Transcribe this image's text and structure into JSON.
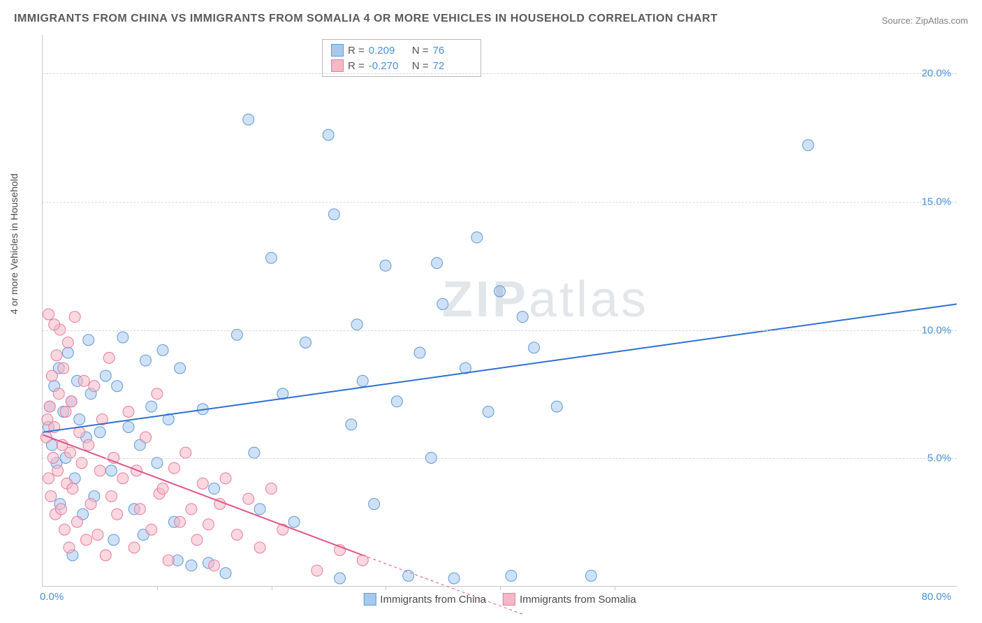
{
  "title": "IMMIGRANTS FROM CHINA VS IMMIGRANTS FROM SOMALIA 4 OR MORE VEHICLES IN HOUSEHOLD CORRELATION CHART",
  "source": "Source: ZipAtlas.com",
  "ylabel": "4 or more Vehicles in Household",
  "watermark": "ZIPatlas",
  "chart": {
    "type": "scatter",
    "xlim": [
      0,
      80
    ],
    "ylim": [
      0,
      21.5
    ],
    "xunit": "%",
    "yunit": "%",
    "ytick_values": [
      5,
      10,
      15,
      20
    ],
    "ytick_labels": [
      "5.0%",
      "10.0%",
      "15.0%",
      "20.0%"
    ],
    "xtick_values": [
      10,
      20,
      30,
      40,
      50
    ],
    "xmin_label": "0.0%",
    "xmax_label": "80.0%",
    "grid_color": "#d8d8d8",
    "axis_color": "#c8c8c8",
    "label_color": "#4a8fd8",
    "background": "#ffffff",
    "point_radius": 8,
    "point_opacity": 0.55,
    "series": [
      {
        "name": "Immigrants from China",
        "color_fill": "#a7c9ee",
        "color_stroke": "#5d9ad6",
        "r": 0.209,
        "n": 76,
        "trend": {
          "x1": 0,
          "y1": 6.0,
          "x2": 80,
          "y2": 11.0,
          "color": "#2e6fd1",
          "width": 2
        },
        "points": [
          [
            0.5,
            6.2
          ],
          [
            0.6,
            7.0
          ],
          [
            0.8,
            5.5
          ],
          [
            1.0,
            7.8
          ],
          [
            1.2,
            4.8
          ],
          [
            1.4,
            8.5
          ],
          [
            1.5,
            3.2
          ],
          [
            1.8,
            6.8
          ],
          [
            2.0,
            5.0
          ],
          [
            2.2,
            9.1
          ],
          [
            2.5,
            7.2
          ],
          [
            2.8,
            4.2
          ],
          [
            3.0,
            8.0
          ],
          [
            3.2,
            6.5
          ],
          [
            3.5,
            2.8
          ],
          [
            3.8,
            5.8
          ],
          [
            4.0,
            9.6
          ],
          [
            4.2,
            7.5
          ],
          [
            4.5,
            3.5
          ],
          [
            5.0,
            6.0
          ],
          [
            5.5,
            8.2
          ],
          [
            6.0,
            4.5
          ],
          [
            6.5,
            7.8
          ],
          [
            7.0,
            9.7
          ],
          [
            7.5,
            6.2
          ],
          [
            8.0,
            3.0
          ],
          [
            8.5,
            5.5
          ],
          [
            9.0,
            8.8
          ],
          [
            9.5,
            7.0
          ],
          [
            10.0,
            4.8
          ],
          [
            10.5,
            9.2
          ],
          [
            11.0,
            6.5
          ],
          [
            11.5,
            2.5
          ],
          [
            12.0,
            8.5
          ],
          [
            13.0,
            0.8
          ],
          [
            14.0,
            6.9
          ],
          [
            15.0,
            3.8
          ],
          [
            16.0,
            0.5
          ],
          [
            17.0,
            9.8
          ],
          [
            18.0,
            18.2
          ],
          [
            18.5,
            5.2
          ],
          [
            20.0,
            12.8
          ],
          [
            21.0,
            7.5
          ],
          [
            22.0,
            2.5
          ],
          [
            23.0,
            9.5
          ],
          [
            25.0,
            17.6
          ],
          [
            25.5,
            14.5
          ],
          [
            26.0,
            0.3
          ],
          [
            27.0,
            6.3
          ],
          [
            27.5,
            10.2
          ],
          [
            28.0,
            8.0
          ],
          [
            29.0,
            3.2
          ],
          [
            30.0,
            12.5
          ],
          [
            31.0,
            7.2
          ],
          [
            32.0,
            0.4
          ],
          [
            33.0,
            9.1
          ],
          [
            34.0,
            5.0
          ],
          [
            34.5,
            12.6
          ],
          [
            35.0,
            11.0
          ],
          [
            36.0,
            0.3
          ],
          [
            37.0,
            8.5
          ],
          [
            38.0,
            13.6
          ],
          [
            39.0,
            6.8
          ],
          [
            40.0,
            11.5
          ],
          [
            41.0,
            0.4
          ],
          [
            42.0,
            10.5
          ],
          [
            43.0,
            9.3
          ],
          [
            45.0,
            7.0
          ],
          [
            48.0,
            0.4
          ],
          [
            67.0,
            17.2
          ],
          [
            2.6,
            1.2
          ],
          [
            6.2,
            1.8
          ],
          [
            8.8,
            2.0
          ],
          [
            11.8,
            1.0
          ],
          [
            14.5,
            0.9
          ],
          [
            19.0,
            3.0
          ]
        ]
      },
      {
        "name": "Immigrants from Somalia",
        "color_fill": "#f5b8c7",
        "color_stroke": "#e77aa0",
        "r": -0.27,
        "n": 72,
        "trend": {
          "x1": 0,
          "y1": 5.9,
          "x2": 28,
          "y2": 1.2,
          "color": "#e05585",
          "width": 2,
          "dash_extend": {
            "x2": 42,
            "y2": -1.1
          }
        },
        "points": [
          [
            0.3,
            5.8
          ],
          [
            0.4,
            6.5
          ],
          [
            0.5,
            4.2
          ],
          [
            0.6,
            7.0
          ],
          [
            0.7,
            3.5
          ],
          [
            0.8,
            8.2
          ],
          [
            0.9,
            5.0
          ],
          [
            1.0,
            6.2
          ],
          [
            1.1,
            2.8
          ],
          [
            1.2,
            9.0
          ],
          [
            1.3,
            4.5
          ],
          [
            1.4,
            7.5
          ],
          [
            1.5,
            10.0
          ],
          [
            1.6,
            3.0
          ],
          [
            1.7,
            5.5
          ],
          [
            1.8,
            8.5
          ],
          [
            1.9,
            2.2
          ],
          [
            2.0,
            6.8
          ],
          [
            2.1,
            4.0
          ],
          [
            2.2,
            9.5
          ],
          [
            2.3,
            1.5
          ],
          [
            2.4,
            5.2
          ],
          [
            2.5,
            7.2
          ],
          [
            2.6,
            3.8
          ],
          [
            2.8,
            10.5
          ],
          [
            3.0,
            2.5
          ],
          [
            3.2,
            6.0
          ],
          [
            3.4,
            4.8
          ],
          [
            3.6,
            8.0
          ],
          [
            3.8,
            1.8
          ],
          [
            4.0,
            5.5
          ],
          [
            4.2,
            3.2
          ],
          [
            4.5,
            7.8
          ],
          [
            4.8,
            2.0
          ],
          [
            5.0,
            4.5
          ],
          [
            5.2,
            6.5
          ],
          [
            5.5,
            1.2
          ],
          [
            5.8,
            8.9
          ],
          [
            6.0,
            3.5
          ],
          [
            6.2,
            5.0
          ],
          [
            6.5,
            2.8
          ],
          [
            7.0,
            4.2
          ],
          [
            7.5,
            6.8
          ],
          [
            8.0,
            1.5
          ],
          [
            8.2,
            4.5
          ],
          [
            8.5,
            3.0
          ],
          [
            9.0,
            5.8
          ],
          [
            9.5,
            2.2
          ],
          [
            10.0,
            7.5
          ],
          [
            10.2,
            3.6
          ],
          [
            10.5,
            3.8
          ],
          [
            11.0,
            1.0
          ],
          [
            11.5,
            4.6
          ],
          [
            12.0,
            2.5
          ],
          [
            12.5,
            5.2
          ],
          [
            13.0,
            3.0
          ],
          [
            13.5,
            1.8
          ],
          [
            14.0,
            4.0
          ],
          [
            14.5,
            2.4
          ],
          [
            15.0,
            0.8
          ],
          [
            15.5,
            3.2
          ],
          [
            16.0,
            4.2
          ],
          [
            17.0,
            2.0
          ],
          [
            18.0,
            3.4
          ],
          [
            19.0,
            1.5
          ],
          [
            20.0,
            3.8
          ],
          [
            21.0,
            2.2
          ],
          [
            24.0,
            0.6
          ],
          [
            26.0,
            1.4
          ],
          [
            28.0,
            1.0
          ],
          [
            0.5,
            10.6
          ],
          [
            1.0,
            10.2
          ]
        ]
      }
    ]
  },
  "stats_box": {
    "rows": [
      {
        "swatch_fill": "#a7c9ee",
        "swatch_stroke": "#5d9ad6",
        "r_label": "R =",
        "r": "0.209",
        "n_label": "N =",
        "n": "76"
      },
      {
        "swatch_fill": "#f5b8c7",
        "swatch_stroke": "#e77aa0",
        "r_label": "R =",
        "r": "-0.270",
        "n_label": "N =",
        "n": "72"
      }
    ]
  },
  "legend": {
    "items": [
      {
        "swatch_fill": "#a7c9ee",
        "swatch_stroke": "#5d9ad6",
        "label": "Immigrants from China"
      },
      {
        "swatch_fill": "#f5b8c7",
        "swatch_stroke": "#e77aa0",
        "label": "Immigrants from Somalia"
      }
    ]
  }
}
